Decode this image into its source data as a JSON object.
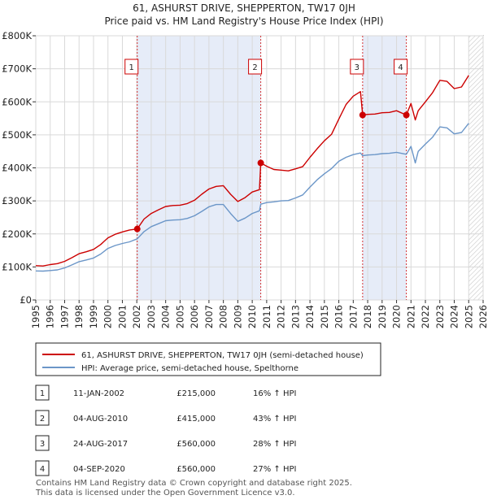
{
  "chart_data": {
    "type": "line",
    "title": "61, ASHURST DRIVE, SHEPPERTON, TW17 0JH",
    "subtitle": "Price paid vs. HM Land Registry's House Price Index (HPI)",
    "ylim": [
      0,
      800000
    ],
    "xlim": [
      1995,
      2026
    ],
    "y_ticks": [
      0,
      100000,
      200000,
      300000,
      400000,
      500000,
      600000,
      700000,
      800000
    ],
    "y_tick_labels": [
      "£0",
      "£100K",
      "£200K",
      "£300K",
      "£400K",
      "£500K",
      "£600K",
      "£700K",
      "£800K"
    ],
    "x_ticks": [
      1995,
      1996,
      1997,
      1998,
      1999,
      2000,
      2001,
      2002,
      2003,
      2004,
      2005,
      2006,
      2007,
      2008,
      2009,
      2010,
      2011,
      2012,
      2013,
      2014,
      2015,
      2016,
      2017,
      2018,
      2019,
      2020,
      2021,
      2022,
      2023,
      2024,
      2025,
      2026
    ],
    "x_tick_labels": [
      "1995",
      "1996",
      "1997",
      "1998",
      "1999",
      "2000",
      "2001",
      "2002",
      "2003",
      "2004",
      "2005",
      "2006",
      "2007",
      "2008",
      "2009",
      "2010",
      "2011",
      "2012",
      "2013",
      "2014",
      "2015",
      "2016",
      "2017",
      "2018",
      "2019",
      "2020",
      "2021",
      "2022",
      "2023",
      "2024",
      "2025",
      "2026"
    ],
    "grid": true,
    "future_hatch_from": 2025.0,
    "shaded_periods": [
      [
        2002.03,
        2010.59
      ],
      [
        2017.65,
        2020.68
      ]
    ],
    "series": [
      {
        "name": "61, ASHURST DRIVE, SHEPPERTON, TW17 0JH (semi-detached house)",
        "color": "#cc0000",
        "x": [
          1995.0,
          1995.5,
          1996.0,
          1996.5,
          1997.0,
          1997.5,
          1998.0,
          1998.5,
          1999.0,
          1999.5,
          2000.0,
          2000.5,
          2001.0,
          2001.5,
          2002.03,
          2002.5,
          2003.0,
          2003.5,
          2004.0,
          2004.5,
          2005.0,
          2005.5,
          2006.0,
          2006.5,
          2007.0,
          2007.5,
          2008.0,
          2008.5,
          2009.0,
          2009.5,
          2010.0,
          2010.5,
          2010.59,
          2011.0,
          2011.5,
          2012.0,
          2012.5,
          2013.0,
          2013.5,
          2014.0,
          2014.5,
          2015.0,
          2015.5,
          2016.0,
          2016.5,
          2017.0,
          2017.5,
          2017.65,
          2018.0,
          2018.5,
          2019.0,
          2019.5,
          2020.0,
          2020.68,
          2021.0,
          2021.3,
          2021.5,
          2022.0,
          2022.5,
          2023.0,
          2023.5,
          2024.0,
          2024.5,
          2025.0
        ],
        "values": [
          104000,
          103000,
          107000,
          110000,
          117000,
          128000,
          140000,
          146000,
          153000,
          168000,
          188000,
          199000,
          206000,
          212000,
          215000,
          245000,
          262000,
          273000,
          283000,
          286000,
          287000,
          292000,
          302000,
          320000,
          336000,
          344000,
          346000,
          320000,
          298000,
          310000,
          327000,
          334000,
          415000,
          405000,
          395000,
          393000,
          391000,
          397000,
          404000,
          432000,
          458000,
          482000,
          502000,
          548000,
          592000,
          617000,
          631000,
          560000,
          562000,
          563000,
          567000,
          568000,
          573000,
          560000,
          595000,
          545000,
          573000,
          600000,
          628000,
          665000,
          662000,
          640000,
          645000,
          680000
        ]
      },
      {
        "name": "HPI: Average price, semi-detached house, Spelthorne",
        "color": "#6b96c8",
        "x": [
          1995.0,
          1995.5,
          1996.0,
          1996.5,
          1997.0,
          1997.5,
          1998.0,
          1998.5,
          1999.0,
          1999.5,
          2000.0,
          2000.5,
          2001.0,
          2001.5,
          2002.03,
          2002.5,
          2003.0,
          2003.5,
          2004.0,
          2004.5,
          2005.0,
          2005.5,
          2006.0,
          2006.5,
          2007.0,
          2007.5,
          2008.0,
          2008.5,
          2009.0,
          2009.5,
          2010.0,
          2010.5,
          2010.59,
          2011.0,
          2011.5,
          2012.0,
          2012.5,
          2013.0,
          2013.5,
          2014.0,
          2014.5,
          2015.0,
          2015.5,
          2016.0,
          2016.5,
          2017.0,
          2017.5,
          2017.65,
          2018.0,
          2018.5,
          2019.0,
          2019.5,
          2020.0,
          2020.68,
          2021.0,
          2021.3,
          2021.5,
          2022.0,
          2022.5,
          2023.0,
          2023.5,
          2024.0,
          2024.5,
          2025.0
        ],
        "values": [
          88000,
          87500,
          89000,
          91000,
          97000,
          106000,
          116000,
          121000,
          127000,
          139000,
          156000,
          165000,
          171000,
          176000,
          185000,
          207000,
          222000,
          231000,
          240000,
          242000,
          243000,
          247000,
          255000,
          268000,
          282000,
          289000,
          289000,
          262000,
          238000,
          248000,
          262000,
          270000,
          290000,
          295000,
          297000,
          300000,
          301000,
          309000,
          318000,
          342000,
          364000,
          382000,
          398000,
          420000,
          432000,
          440000,
          445000,
          437000,
          439000,
          440000,
          443000,
          444000,
          447000,
          441000,
          465000,
          415000,
          450000,
          472000,
          493000,
          524000,
          521000,
          503000,
          507000,
          535000
        ]
      }
    ],
    "sales": [
      {
        "num": "1",
        "x": 2002.03,
        "value": 215000,
        "date": "11-JAN-2002",
        "price": "£215,000",
        "delta": "16% ↑ HPI"
      },
      {
        "num": "2",
        "x": 2010.59,
        "value": 415000,
        "date": "04-AUG-2010",
        "price": "£415,000",
        "delta": "43% ↑ HPI"
      },
      {
        "num": "3",
        "x": 2017.65,
        "value": 560000,
        "date": "24-AUG-2017",
        "price": "£560,000",
        "delta": "28% ↑ HPI"
      },
      {
        "num": "4",
        "x": 2020.68,
        "value": 560000,
        "date": "04-SEP-2020",
        "price": "£560,000",
        "delta": "27% ↑ HPI"
      }
    ],
    "footer_line1": "Contains HM Land Registry data © Crown copyright and database right 2025.",
    "footer_line2": "This data is licensed under the Open Government Licence v3.0."
  }
}
